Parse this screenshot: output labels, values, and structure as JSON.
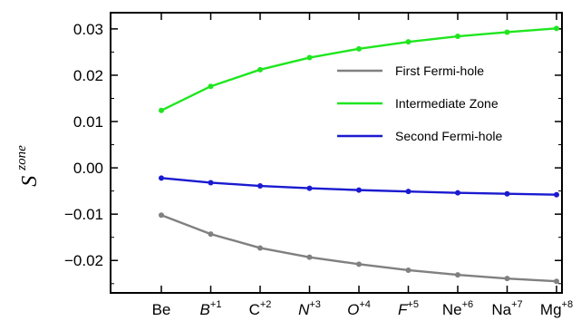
{
  "chart_data": {
    "type": "line",
    "title": "",
    "xlabel": "",
    "ylabel": "S",
    "ylabel_superscript": "zone",
    "categories": [
      {
        "base": "Be",
        "sup": "",
        "italic": false
      },
      {
        "base": "B",
        "sup": "+1",
        "italic": true
      },
      {
        "base": "C",
        "sup": "+2",
        "italic": false
      },
      {
        "base": "N",
        "sup": "+3",
        "italic": true
      },
      {
        "base": "O",
        "sup": "+4",
        "italic": true
      },
      {
        "base": "F",
        "sup": "+5",
        "italic": true
      },
      {
        "base": "Ne",
        "sup": "+6",
        "italic": false
      },
      {
        "base": "Na",
        "sup": "+7",
        "italic": false
      },
      {
        "base": "Mg",
        "sup": "+8",
        "italic": false
      }
    ],
    "ylim": [
      -0.027,
      0.0335
    ],
    "yticks": [
      0.03,
      0.02,
      0.01,
      0.0,
      -0.01,
      -0.02
    ],
    "ytick_labels": [
      "0.03",
      "0.02",
      "0.01",
      "0.00",
      "−0.01",
      "−0.02"
    ],
    "grid": false,
    "legend_position": "right",
    "series": [
      {
        "name": "First Fermi-hole",
        "color": "#808080",
        "values": [
          -0.0102,
          -0.0143,
          -0.0173,
          -0.0193,
          -0.0208,
          -0.0221,
          -0.0231,
          -0.0239,
          -0.0245
        ]
      },
      {
        "name": "Intermediate Zone",
        "color": "#1fe61f",
        "values": [
          0.0124,
          0.0176,
          0.0212,
          0.0238,
          0.0257,
          0.0272,
          0.0284,
          0.0293,
          0.0301
        ]
      },
      {
        "name": "Second Fermi-hole",
        "color": "#1a1ad0",
        "values": [
          -0.0022,
          -0.0032,
          -0.0039,
          -0.0044,
          -0.0048,
          -0.0051,
          -0.0054,
          -0.0056,
          -0.0058
        ]
      }
    ]
  }
}
